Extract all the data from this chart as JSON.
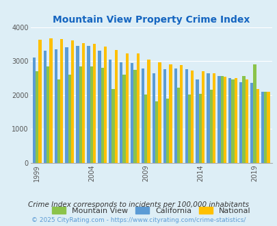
{
  "title": "Mountain View Property Crime Index",
  "years": [
    1999,
    2000,
    2001,
    2002,
    2003,
    2004,
    2005,
    2006,
    2007,
    2008,
    2009,
    2010,
    2011,
    2012,
    2013,
    2014,
    2015,
    2016,
    2017,
    2018,
    2019,
    2020
  ],
  "mountain_view": [
    2700,
    2850,
    2450,
    2600,
    2850,
    2850,
    2800,
    2180,
    2600,
    2730,
    2020,
    1820,
    1900,
    2220,
    2020,
    2040,
    2160,
    2550,
    2450,
    2550,
    2900,
    2100
  ],
  "california": [
    3100,
    3300,
    3350,
    3400,
    3440,
    3440,
    3300,
    3040,
    2960,
    2940,
    2780,
    2640,
    2760,
    2780,
    2750,
    2450,
    2640,
    2560,
    2500,
    2380,
    2350,
    2100
  ],
  "national": [
    3620,
    3660,
    3640,
    3600,
    3520,
    3500,
    3430,
    3330,
    3220,
    3220,
    3040,
    2960,
    2910,
    2890,
    2710,
    2700,
    2630,
    2540,
    2500,
    2450,
    2180,
    2100
  ],
  "mv_color": "#8bc34a",
  "ca_color": "#5b9bd5",
  "nat_color": "#ffc000",
  "bg_color": "#ddeef6",
  "plot_bg": "#ddeef6",
  "title_color": "#1565c0",
  "footer_color": "#5b9bd5",
  "subtitle": "Crime Index corresponds to incidents per 100,000 inhabitants",
  "copyright": "© 2025 CityRating.com - https://www.cityrating.com/crime-statistics/",
  "ylim": [
    0,
    4000
  ],
  "yticks": [
    0,
    1000,
    2000,
    3000,
    4000
  ],
  "xtick_labels": [
    "1999",
    "2004",
    "2009",
    "2014",
    "2019"
  ],
  "tick_years": [
    1999,
    2004,
    2009,
    2014,
    2019
  ]
}
